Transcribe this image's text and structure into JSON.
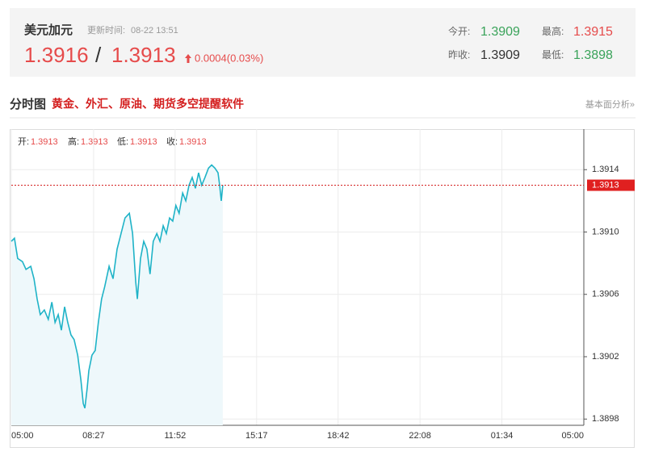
{
  "header": {
    "name": "美元加元",
    "update_label": "更新时间:",
    "update_time": "08-22 13:51",
    "bid": "1.3916",
    "separator": "/",
    "ask": "1.3913",
    "change": "0.0004(0.03%)",
    "stats": [
      {
        "label": "今开:",
        "value": "1.3909"
      },
      {
        "label": "最高:",
        "value": "1.3915"
      },
      {
        "label": "昨收:",
        "value": "1.3909"
      },
      {
        "label": "最低:",
        "value": "1.3898"
      }
    ]
  },
  "section": {
    "title": "分时图",
    "promo": "黄金、外汇、原油、期货多空提醒软件",
    "link": "基本面分析»"
  },
  "ohlc": [
    {
      "label": "开:",
      "value": "1.3913"
    },
    {
      "label": "高:",
      "value": "1.3913"
    },
    {
      "label": "低:",
      "value": "1.3913"
    },
    {
      "label": "收:",
      "value": "1.3913"
    }
  ],
  "chart_data": {
    "type": "line",
    "color": "#1fb3c7",
    "area_color": "#eef8fb",
    "grid": true,
    "x": [
      0,
      8,
      16,
      28,
      37,
      49,
      57,
      65,
      73,
      83,
      93,
      102,
      110,
      118,
      126,
      134,
      142,
      150,
      158,
      167,
      175,
      181,
      185,
      191,
      195,
      203,
      211,
      219,
      227,
      235,
      246,
      256,
      266,
      276,
      286,
      297,
      305,
      313,
      317,
      325,
      333,
      341,
      349,
      357,
      366,
      374,
      382,
      390,
      398,
      406,
      414,
      422,
      431,
      439,
      447,
      455,
      463,
      471,
      479,
      487,
      496,
      504,
      512,
      520,
      524,
      528,
      532
    ],
    "values": [
      1.39094,
      1.39096,
      1.39083,
      1.39081,
      1.39076,
      1.39078,
      1.3907,
      1.39057,
      1.39047,
      1.3905,
      1.39044,
      1.39055,
      1.39042,
      1.39047,
      1.39037,
      1.39052,
      1.39042,
      1.39034,
      1.39031,
      1.39021,
      1.39005,
      1.3899,
      1.38987,
      1.39,
      1.39011,
      1.39021,
      1.39024,
      1.39042,
      1.39057,
      1.39065,
      1.39078,
      1.3907,
      1.39089,
      1.39099,
      1.39109,
      1.39112,
      1.39099,
      1.39068,
      1.39057,
      1.39083,
      1.39094,
      1.39089,
      1.39073,
      1.39094,
      1.39099,
      1.39094,
      1.39104,
      1.39099,
      1.39109,
      1.39107,
      1.39117,
      1.39112,
      1.39125,
      1.3912,
      1.3913,
      1.39135,
      1.39128,
      1.39138,
      1.3913,
      1.39135,
      1.39141,
      1.39143,
      1.39141,
      1.39138,
      1.3913,
      1.3912,
      1.3913
    ],
    "xlim": [
      0,
      1440
    ],
    "xticks": [
      {
        "value": 0,
        "label": "05:00"
      },
      {
        "value": 207,
        "label": "08:27"
      },
      {
        "value": 412,
        "label": "11:52"
      },
      {
        "value": 617,
        "label": "15:17"
      },
      {
        "value": 822,
        "label": "18:42"
      },
      {
        "value": 1028,
        "label": "22:08"
      },
      {
        "value": 1234,
        "label": "01:34"
      },
      {
        "value": 1440,
        "label": "05:00"
      }
    ],
    "ylim": [
      1.38976,
      1.39166
    ],
    "yticks": [
      1.3898,
      1.3902,
      1.3906,
      {
        "value": 1.391,
        "label": "1.3910"
      },
      1.3914
    ],
    "price_line": 1.3913
  }
}
